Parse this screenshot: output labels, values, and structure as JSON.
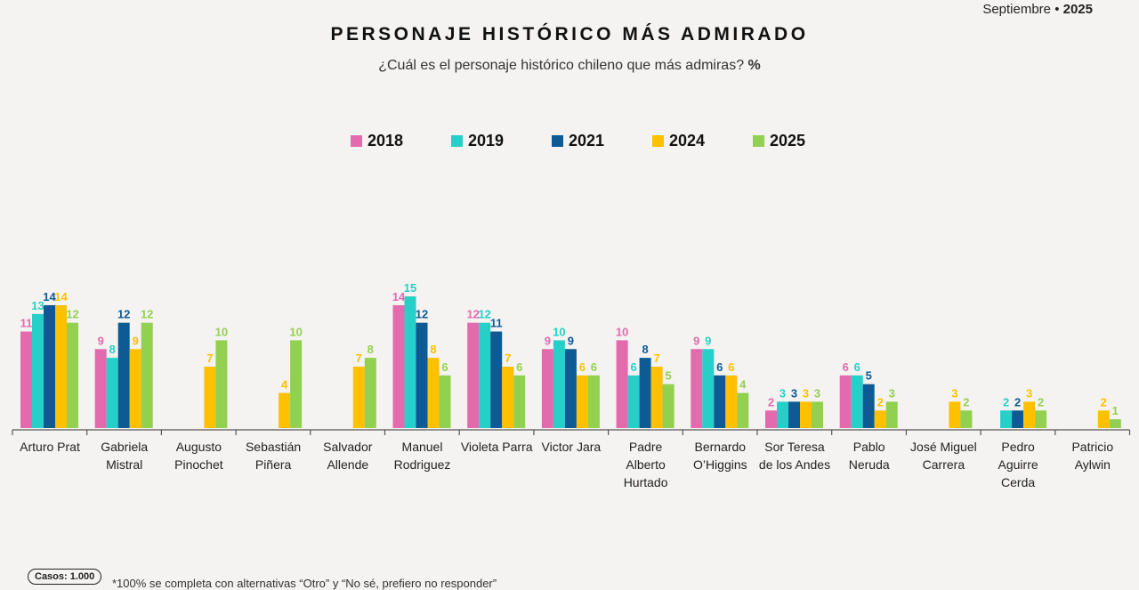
{
  "header": {
    "month": "Septiembre",
    "year": "2025"
  },
  "chart_data": {
    "type": "bar",
    "title": "PERSONAJE HISTÓRICO MÁS ADMIRADO",
    "subtitle": "¿Cuál es el personaje histórico chileno que más admiras?",
    "subtitle_unit": "%",
    "legend_placement": "top-center",
    "ylim": [
      0,
      16
    ],
    "categories": [
      "Arturo Prat",
      "Gabriela Mistral",
      "Augusto Pinochet",
      "Sebastián Piñera",
      "Salvador Allende",
      "Manuel Rodriguez",
      "Violeta Parra",
      "Victor Jara",
      "Padre Alberto Hurtado",
      "Bernardo O’Higgins",
      "Sor Teresa de los Andes",
      "Pablo Neruda",
      "José Miguel Carrera",
      "Pedro Aguirre Cerda",
      "Patricio Aylwin"
    ],
    "series": [
      {
        "name": "2018",
        "color": "#e36aad",
        "values": [
          11,
          9,
          null,
          null,
          null,
          14,
          12,
          9,
          10,
          9,
          2,
          6,
          null,
          null,
          null
        ]
      },
      {
        "name": "2019",
        "color": "#26cfc7",
        "values": [
          13,
          8,
          null,
          null,
          null,
          15,
          12,
          10,
          6,
          9,
          3,
          6,
          null,
          2,
          null
        ]
      },
      {
        "name": "2021",
        "color": "#0d5a94",
        "values": [
          14,
          12,
          null,
          null,
          null,
          12,
          11,
          9,
          8,
          6,
          3,
          5,
          null,
          2,
          null
        ]
      },
      {
        "name": "2024",
        "color": "#ffc000",
        "values": [
          14,
          9,
          7,
          4,
          7,
          8,
          7,
          6,
          7,
          6,
          3,
          2,
          3,
          3,
          2
        ]
      },
      {
        "name": "2025",
        "color": "#92d050",
        "values": [
          12,
          12,
          10,
          10,
          8,
          6,
          6,
          6,
          5,
          4,
          3,
          3,
          2,
          2,
          1
        ]
      }
    ]
  },
  "footer": {
    "cases": "Casos: 1.000",
    "note": "*100% se completa con alternativas “Otro” y “No sé, prefiero no responder”"
  }
}
